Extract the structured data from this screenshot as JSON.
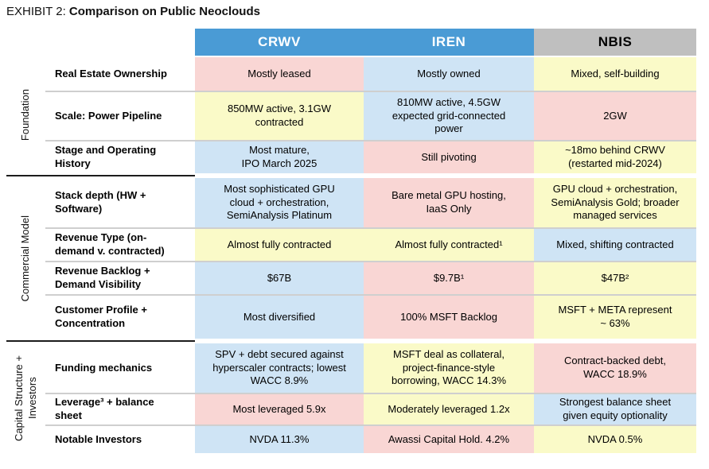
{
  "title": {
    "prefix": "EXHIBIT 2: ",
    "main": "Comparison on Public Neoclouds"
  },
  "colors": {
    "header_blue": "#4a9bd5",
    "header_gray": "#bfbfbf",
    "blue": "#cfe4f5",
    "pink": "#f9d6d4",
    "yellow": "#fafac8"
  },
  "header": {
    "cells": [
      {
        "label": "CRWV",
        "tone": "header_blue",
        "fg": "#ffffff"
      },
      {
        "label": "IREN",
        "tone": "header_blue",
        "fg": "#ffffff"
      },
      {
        "label": "NBIS",
        "tone": "header_gray",
        "fg": "#000000"
      }
    ]
  },
  "groups": [
    {
      "label": "Foundation",
      "rows": [
        {
          "label": "Real Estate Ownership",
          "cells": [
            {
              "text": "Mostly leased",
              "tone": "pink"
            },
            {
              "text": "Mostly owned",
              "tone": "blue"
            },
            {
              "text": "Mixed, self-building",
              "tone": "yellow"
            }
          ]
        },
        {
          "label": "Scale: Power Pipeline",
          "cells": [
            {
              "text": "850MW active, 3.1GW\ncontracted",
              "tone": "yellow"
            },
            {
              "text": "810MW active, 4.5GW\nexpected grid-connected\npower",
              "tone": "blue"
            },
            {
              "text": "2GW",
              "tone": "pink"
            }
          ]
        },
        {
          "label": "Stage and Operating\nHistory",
          "cells": [
            {
              "text": "Most mature,\nIPO March 2025",
              "tone": "blue"
            },
            {
              "text": "Still pivoting",
              "tone": "pink"
            },
            {
              "text": "~18mo behind CRWV\n(restarted mid-2024)",
              "tone": "yellow"
            }
          ]
        }
      ]
    },
    {
      "label": "Commercial Model",
      "rows": [
        {
          "label": "Stack depth (HW +\nSoftware)",
          "cells": [
            {
              "text": "Most sophisticated GPU\ncloud + orchestration,\nSemiAnalysis Platinum",
              "tone": "blue"
            },
            {
              "text": "Bare metal GPU hosting,\nIaaS Only",
              "tone": "pink"
            },
            {
              "text": "GPU cloud + orchestration,\nSemiAnalysis Gold; broader\nmanaged services",
              "tone": "yellow"
            }
          ]
        },
        {
          "label": "Revenue Type (on-\ndemand v. contracted)",
          "cells": [
            {
              "text": "Almost fully contracted",
              "tone": "yellow"
            },
            {
              "text": "Almost fully contracted¹",
              "tone": "yellow"
            },
            {
              "text": "Mixed, shifting contracted",
              "tone": "blue"
            }
          ]
        },
        {
          "label": "Revenue Backlog +\nDemand Visibility",
          "cells": [
            {
              "text": "$67B",
              "tone": "blue"
            },
            {
              "text": "$9.7B¹",
              "tone": "pink"
            },
            {
              "text": "$47B²",
              "tone": "yellow"
            }
          ]
        },
        {
          "label": "Customer Profile +\nConcentration",
          "cells": [
            {
              "text": "Most diversified",
              "tone": "blue"
            },
            {
              "text": "100% MSFT Backlog",
              "tone": "pink"
            },
            {
              "text": "MSFT + META represent\n~ 63%",
              "tone": "yellow"
            }
          ]
        }
      ]
    },
    {
      "label": "Capital Structure +\nInvestors",
      "rows": [
        {
          "label": "Funding mechanics",
          "cells": [
            {
              "text": "SPV + debt secured against\nhyperscaler contracts; lowest\nWACC 8.9%",
              "tone": "blue"
            },
            {
              "text": "MSFT deal as collateral,\nproject-finance-style\nborrowing, WACC 14.3%",
              "tone": "yellow"
            },
            {
              "text": "Contract-backed debt,\nWACC 18.9%",
              "tone": "pink"
            }
          ]
        },
        {
          "label": "Leverage³ + balance\nsheet",
          "cells": [
            {
              "text": "Most leveraged 5.9x",
              "tone": "pink"
            },
            {
              "text": "Moderately leveraged 1.2x",
              "tone": "yellow"
            },
            {
              "text": "Strongest balance sheet\ngiven equity optionality",
              "tone": "blue"
            }
          ]
        },
        {
          "label": "Notable Investors",
          "cells": [
            {
              "text": "NVDA 11.3%",
              "tone": "blue"
            },
            {
              "text": "Awassi Capital Hold. 4.2%",
              "tone": "pink"
            },
            {
              "text": "NVDA 0.5%",
              "tone": "yellow"
            }
          ]
        }
      ]
    }
  ]
}
